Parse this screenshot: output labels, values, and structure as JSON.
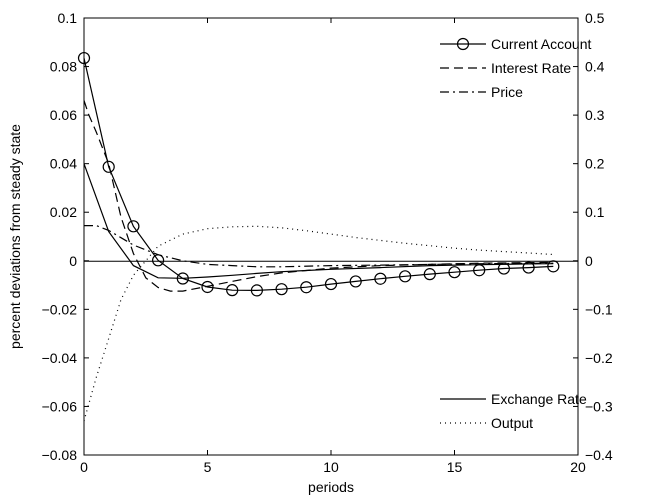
{
  "chart_data": {
    "type": "line",
    "xlabel": "periods",
    "ylabel": "percent deviations from steady state",
    "xlim": [
      0,
      20
    ],
    "ylim_left": [
      -0.08,
      0.1
    ],
    "ylim_right": [
      -0.4,
      0.5
    ],
    "xticks": [
      "0",
      "5",
      "10",
      "15",
      "20"
    ],
    "yticks_left": [
      "−0.08",
      "−0.06",
      "−0.04",
      "−0.02",
      "0",
      "0.02",
      "0.04",
      "0.06",
      "0.08",
      "0.1"
    ],
    "yticks_right": [
      "−0.4",
      "−0.3",
      "−0.2",
      "−0.1",
      "0",
      "0.1",
      "0.2",
      "0.3",
      "0.4",
      "0.5"
    ],
    "legend_top": [
      "Current Account",
      "Interest Rate",
      "Price"
    ],
    "legend_bottom": [
      "Exchange Rate",
      "Output"
    ],
    "legend_placement": [
      "top-right",
      "bottom-right"
    ],
    "zero_line": true,
    "series": [
      {
        "name": "Current Account",
        "axis": "left",
        "style": "solid-circle",
        "x": [
          0,
          1,
          2,
          3,
          4,
          5,
          6,
          7,
          8,
          9,
          10,
          11,
          12,
          13,
          14,
          15,
          16,
          17,
          18,
          19
        ],
        "y": [
          0.0835,
          0.0387,
          0.0142,
          0.0002,
          -0.0073,
          -0.0108,
          -0.0121,
          -0.0122,
          -0.0117,
          -0.0109,
          -0.0096,
          -0.0085,
          -0.0074,
          -0.0064,
          -0.0055,
          -0.0047,
          -0.0039,
          -0.0032,
          -0.0028,
          -0.0023
        ]
      },
      {
        "name": "Interest Rate",
        "axis": "left",
        "style": "dashed",
        "x": [
          0,
          0.2,
          0.5,
          1,
          1.5,
          2,
          2.5,
          3,
          3.5,
          4,
          5,
          6,
          7,
          8,
          9,
          10,
          12,
          14,
          16,
          18,
          19
        ],
        "y": [
          0.066,
          0.06,
          0.053,
          0.04,
          0.018,
          0.003,
          -0.007,
          -0.011,
          -0.0125,
          -0.0125,
          -0.0105,
          -0.0085,
          -0.0065,
          -0.005,
          -0.004,
          -0.003,
          -0.002,
          -0.0015,
          -0.001,
          -0.0008,
          -0.0006
        ]
      },
      {
        "name": "Price",
        "axis": "left",
        "style": "dashdot",
        "x": [
          0,
          0.3,
          0.5,
          1,
          1.5,
          2,
          2.5,
          3,
          4,
          5,
          6,
          7,
          8,
          10,
          12,
          14,
          16,
          19
        ],
        "y": [
          0.0145,
          0.0145,
          0.0145,
          0.0125,
          0.0095,
          0.0065,
          0.0045,
          0.0025,
          0.0,
          -0.0015,
          -0.002,
          -0.0025,
          -0.0025,
          -0.002,
          -0.0018,
          -0.0015,
          -0.0012,
          -0.001
        ]
      },
      {
        "name": "Exchange Rate",
        "axis": "left",
        "style": "solid",
        "x": [
          0,
          1,
          2,
          3,
          4,
          5,
          6,
          7,
          8,
          9,
          10,
          12,
          14,
          16,
          18,
          19
        ],
        "y": [
          0.04,
          0.012,
          -0.002,
          -0.007,
          -0.0072,
          -0.0067,
          -0.006,
          -0.0052,
          -0.0045,
          -0.004,
          -0.0035,
          -0.0028,
          -0.002,
          -0.0016,
          -0.0013,
          -0.0012
        ]
      },
      {
        "name": "Output",
        "axis": "right",
        "style": "dotted",
        "x": [
          0,
          0.5,
          1,
          1.5,
          2,
          2.5,
          3,
          4,
          5,
          6,
          7,
          8,
          9,
          10,
          11,
          12,
          13,
          14,
          15,
          16,
          17,
          18,
          19
        ],
        "y": [
          -0.33,
          -0.24,
          -0.16,
          -0.08,
          -0.03,
          0.0,
          0.03,
          0.055,
          0.066,
          0.07,
          0.071,
          0.068,
          0.062,
          0.055,
          0.048,
          0.042,
          0.036,
          0.031,
          0.026,
          0.022,
          0.019,
          0.016,
          0.013
        ]
      }
    ]
  }
}
